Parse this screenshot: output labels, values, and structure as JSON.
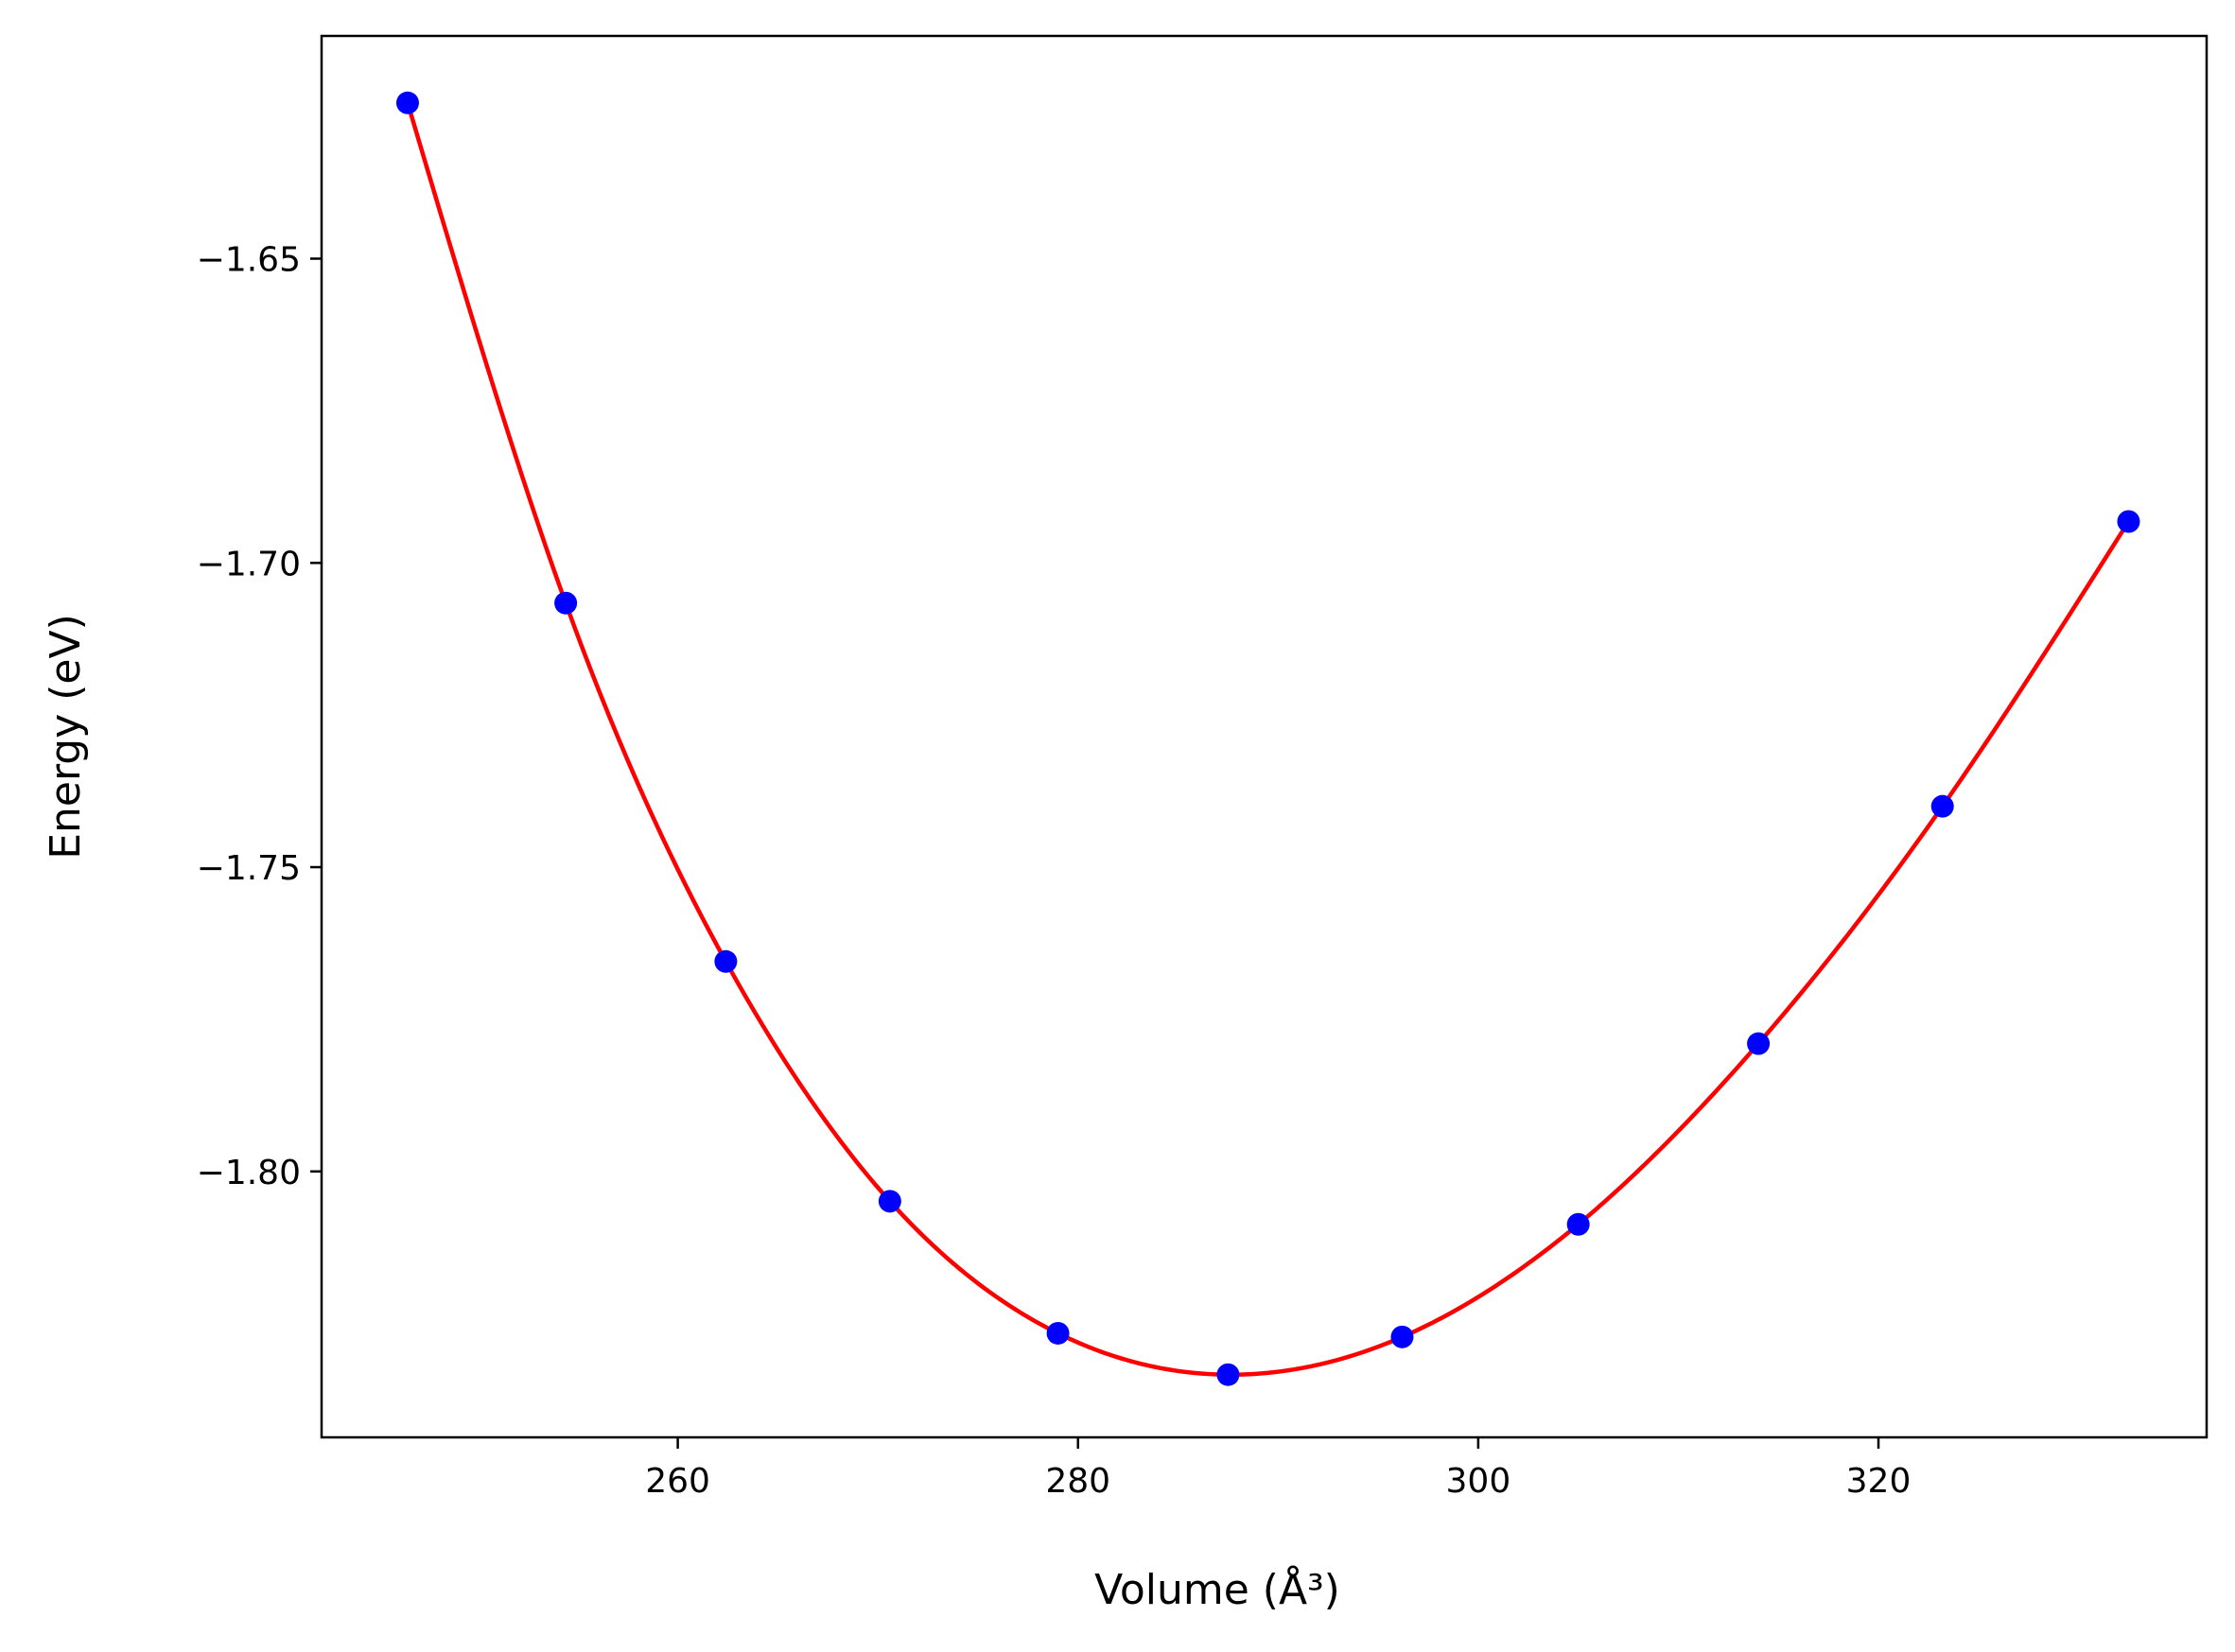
{
  "chart_data": {
    "type": "scatter",
    "xlabel": "Volume (Å³)",
    "ylabel": "Energy (eV)",
    "xlim": [
      242.2,
      336.4
    ],
    "ylim": [
      -1.8437,
      -1.6134
    ],
    "grid": false,
    "legend": "none",
    "x_ticks": [
      260,
      280,
      300,
      320
    ],
    "x_tick_labels": [
      "260",
      "280",
      "300",
      "320"
    ],
    "y_ticks": [
      -1.65,
      -1.7,
      -1.75,
      -1.8
    ],
    "y_tick_labels": [
      "−1.65",
      "−1.70",
      "−1.75",
      "−1.80"
    ],
    "series": [
      {
        "marker_color": "#0000ff",
        "line_color": "#ff0000",
        "points": [
          {
            "x": 246.5,
            "y": -1.6244
          },
          {
            "x": 254.4,
            "y": -1.7066
          },
          {
            "x": 262.4,
            "y": -1.7655
          },
          {
            "x": 270.6,
            "y": -1.8049
          },
          {
            "x": 279.0,
            "y": -1.8266
          },
          {
            "x": 287.5,
            "y": -1.8334
          },
          {
            "x": 296.2,
            "y": -1.8272
          },
          {
            "x": 305.0,
            "y": -1.8087
          },
          {
            "x": 314.0,
            "y": -1.779
          },
          {
            "x": 323.2,
            "y": -1.74
          },
          {
            "x": 332.5,
            "y": -1.6932
          }
        ]
      }
    ]
  }
}
